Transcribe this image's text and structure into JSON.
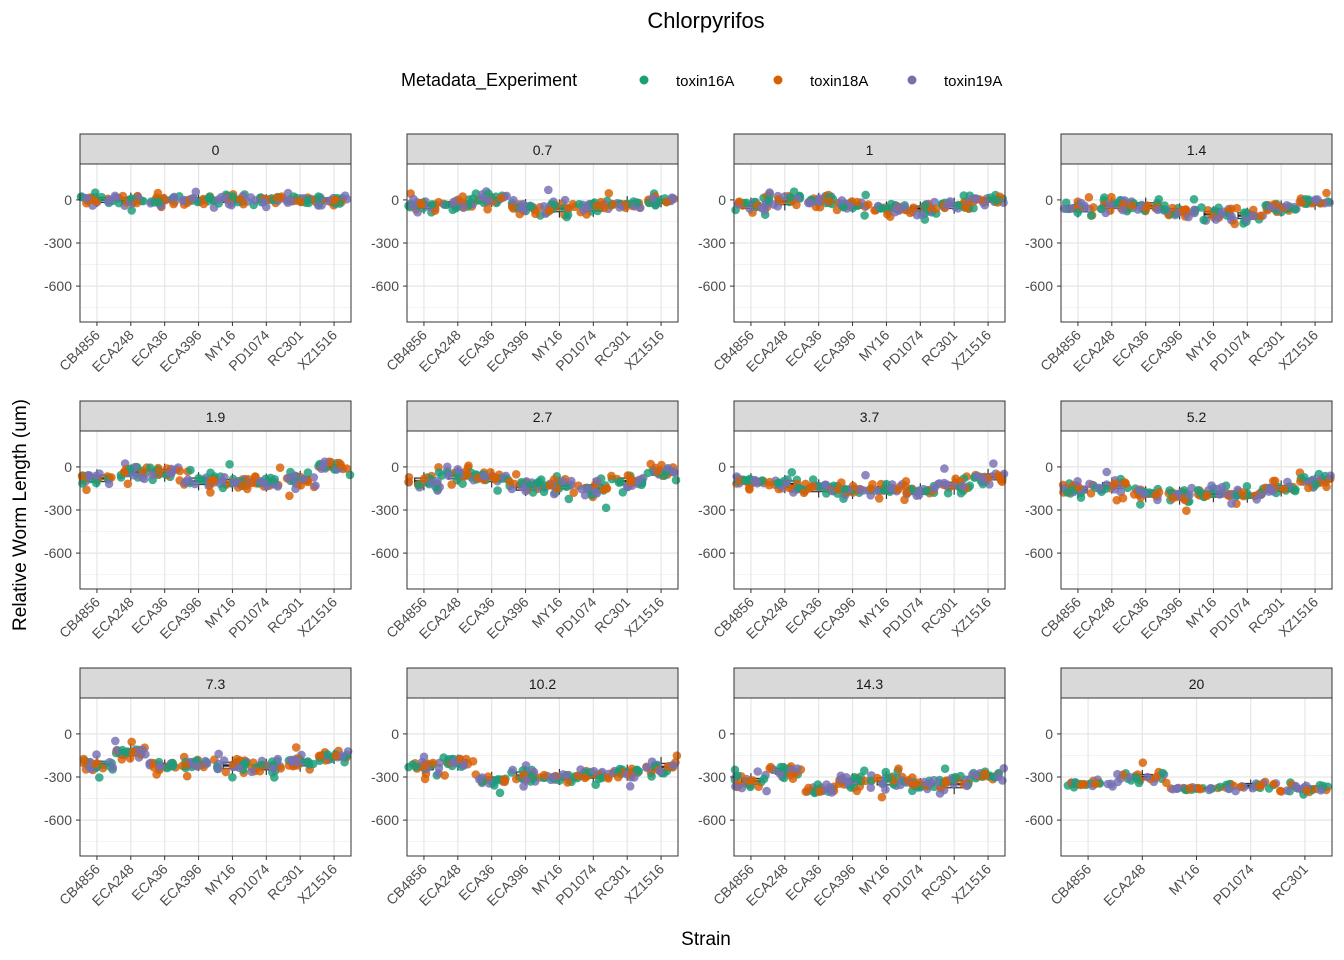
{
  "chart_data": {
    "type": "scatter",
    "title": "Chlorpyrifos",
    "xlabel": "Strain",
    "ylabel": "Relative Worm Length (um)",
    "ylim": [
      -850,
      250
    ],
    "yticks": [
      0,
      -300,
      -600
    ],
    "grid": true,
    "legend": {
      "title": "Metadata_Experiment",
      "position": "top",
      "entries": [
        {
          "label": "toxin16A",
          "color": "#1b9e77"
        },
        {
          "label": "toxin18A",
          "color": "#d95f02"
        },
        {
          "label": "toxin19A",
          "color": "#7570b3"
        }
      ]
    },
    "strains_all": [
      "CB4856",
      "ECA248",
      "ECA36",
      "ECA396",
      "MY16",
      "PD1074",
      "RC301",
      "XZ1516"
    ],
    "panels": [
      {
        "label": "0",
        "strains": [
          "CB4856",
          "ECA248",
          "ECA36",
          "ECA396",
          "MY16",
          "PD1074",
          "RC301",
          "XZ1516"
        ],
        "medians": [
          0,
          -5,
          0,
          0,
          0,
          0,
          0,
          0
        ],
        "spreads": [
          35,
          40,
          30,
          28,
          35,
          28,
          28,
          28
        ]
      },
      {
        "label": "0.7",
        "strains": [
          "CB4856",
          "ECA248",
          "ECA36",
          "ECA396",
          "MY16",
          "PD1074",
          "RC301",
          "XZ1516"
        ],
        "medians": [
          -40,
          -30,
          0,
          -50,
          -60,
          -55,
          -30,
          -10
        ],
        "spreads": [
          40,
          35,
          35,
          40,
          45,
          45,
          40,
          30
        ]
      },
      {
        "label": "1",
        "strains": [
          "CB4856",
          "ECA248",
          "ECA36",
          "ECA396",
          "MY16",
          "PD1074",
          "RC301",
          "XZ1516"
        ],
        "medians": [
          -40,
          -10,
          0,
          -40,
          -60,
          -60,
          -40,
          0
        ],
        "spreads": [
          40,
          45,
          35,
          35,
          35,
          35,
          40,
          30
        ]
      },
      {
        "label": "1.4",
        "strains": [
          "CB4856",
          "ECA248",
          "ECA36",
          "ECA396",
          "MY16",
          "PD1074",
          "RC301",
          "XZ1516"
        ],
        "medians": [
          -60,
          -40,
          -40,
          -80,
          -100,
          -110,
          -60,
          -20
        ],
        "spreads": [
          45,
          40,
          40,
          40,
          40,
          40,
          40,
          35
        ]
      },
      {
        "label": "1.9",
        "strains": [
          "CB4856",
          "ECA248",
          "ECA36",
          "ECA396",
          "MY16",
          "PD1074",
          "RC301",
          "XZ1516"
        ],
        "medians": [
          -80,
          -40,
          -40,
          -100,
          -110,
          -110,
          -90,
          0
        ],
        "spreads": [
          45,
          40,
          45,
          45,
          45,
          45,
          45,
          30
        ]
      },
      {
        "label": "2.7",
        "strains": [
          "CB4856",
          "ECA248",
          "ECA36",
          "ECA396",
          "MY16",
          "PD1074",
          "RC301",
          "XZ1516"
        ],
        "medians": [
          -100,
          -60,
          -80,
          -140,
          -130,
          -150,
          -100,
          -40
        ],
        "spreads": [
          45,
          45,
          45,
          45,
          45,
          50,
          45,
          35
        ]
      },
      {
        "label": "3.7",
        "strains": [
          "CB4856",
          "ECA248",
          "ECA36",
          "ECA396",
          "MY16",
          "PD1074",
          "RC301",
          "XZ1516"
        ],
        "medians": [
          -100,
          -120,
          -150,
          -160,
          -160,
          -170,
          -130,
          -70
        ],
        "spreads": [
          40,
          45,
          45,
          45,
          45,
          40,
          45,
          40
        ]
      },
      {
        "label": "5.2",
        "strains": [
          "CB4856",
          "ECA248",
          "ECA36",
          "ECA396",
          "MY16",
          "PD1074",
          "RC301",
          "XZ1516"
        ],
        "medians": [
          -160,
          -130,
          -190,
          -200,
          -190,
          -200,
          -150,
          -100
        ],
        "spreads": [
          40,
          40,
          40,
          45,
          40,
          35,
          40,
          35
        ]
      },
      {
        "label": "7.3",
        "strains": [
          "CB4856",
          "ECA248",
          "ECA36",
          "ECA396",
          "MY16",
          "PD1074",
          "RC301",
          "XZ1516"
        ],
        "medians": [
          -210,
          -130,
          -220,
          -210,
          -220,
          -230,
          -200,
          -160
        ],
        "spreads": [
          40,
          45,
          30,
          35,
          45,
          40,
          45,
          35
        ]
      },
      {
        "label": "10.2",
        "strains": [
          "CB4856",
          "ECA248",
          "ECA36",
          "ECA396",
          "MY16",
          "PD1074",
          "RC301",
          "XZ1516"
        ],
        "medians": [
          -230,
          -200,
          -320,
          -290,
          -300,
          -290,
          -270,
          -230
        ],
        "spreads": [
          40,
          40,
          40,
          50,
          40,
          35,
          40,
          50
        ]
      },
      {
        "label": "14.3",
        "strains": [
          "CB4856",
          "ECA248",
          "ECA36",
          "ECA396",
          "MY16",
          "PD1074",
          "RC301",
          "XZ1516"
        ],
        "medians": [
          -330,
          -260,
          -390,
          -330,
          -330,
          -350,
          -350,
          -290
        ],
        "spreads": [
          40,
          40,
          25,
          40,
          50,
          30,
          50,
          25
        ]
      },
      {
        "label": "20",
        "strains": [
          "CB4856",
          "ECA248",
          "MY16",
          "PD1074",
          "RC301"
        ],
        "medians": [
          -350,
          -300,
          -380,
          -360,
          -380
        ],
        "spreads": [
          20,
          35,
          10,
          30,
          35
        ]
      }
    ]
  }
}
